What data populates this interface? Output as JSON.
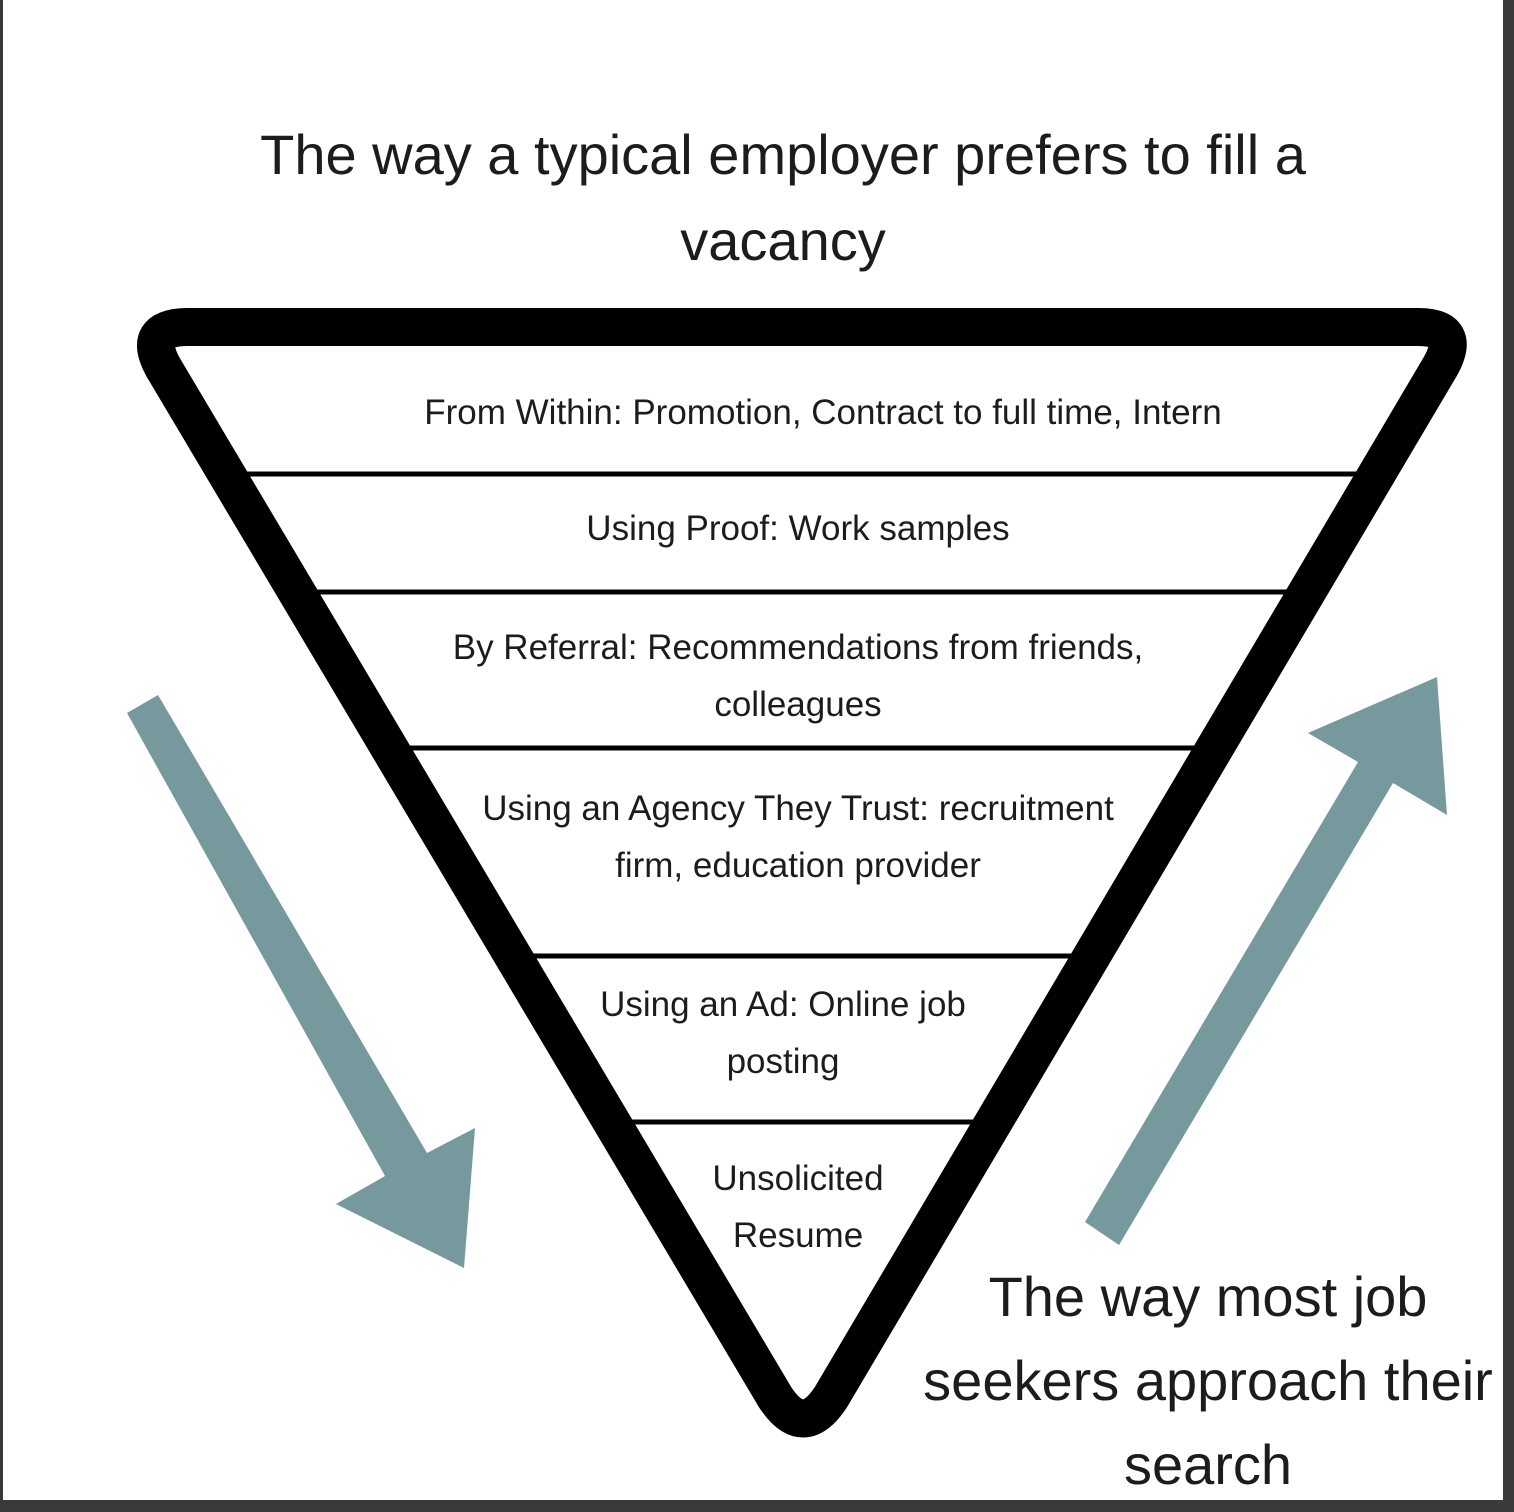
{
  "diagram": {
    "top_title": "The way a typical employer prefers to fill a vacancy",
    "levels": [
      {
        "label": "From Within: Promotion, Contract to full time, Intern"
      },
      {
        "label": "Using Proof: Work samples"
      },
      {
        "label": "By Referral: Recommendations from friends, colleagues"
      },
      {
        "label": "Using an Agency They Trust: recruitment firm, education provider"
      },
      {
        "label": "Using an Ad: Online job posting"
      },
      {
        "label": "Unsolicited Resume"
      }
    ],
    "bottom_title": "The way most job seekers approach their search",
    "arrow_left_direction": "down",
    "arrow_right_direction": "up",
    "colors": {
      "outline": "#000000",
      "arrow": "#76999d",
      "text": "#1c1c1c",
      "background": "#ffffff"
    }
  }
}
